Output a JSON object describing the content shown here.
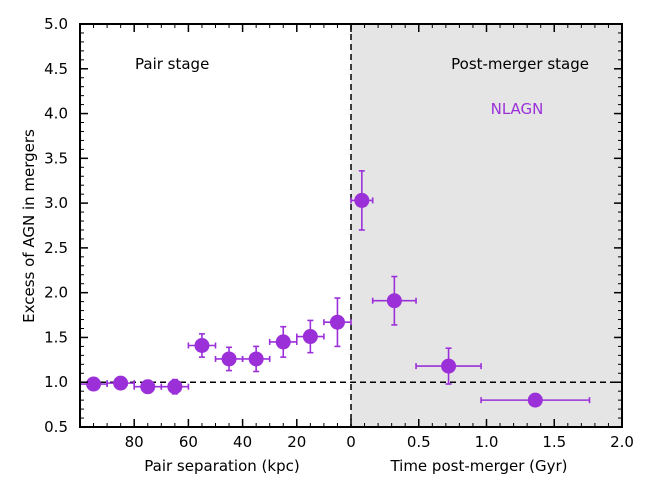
{
  "chart_data": {
    "type": "scatter",
    "ylabel": "Excess of AGN in mergers",
    "ylim": [
      0.5,
      5.0
    ],
    "y_ticks": [
      "0.5",
      "1.0",
      "1.5",
      "2.0",
      "2.5",
      "3.0",
      "3.5",
      "4.0",
      "4.5",
      "5.0"
    ],
    "y_tick_values": [
      0.5,
      1.0,
      1.5,
      2.0,
      2.5,
      3.0,
      3.5,
      4.0,
      4.5,
      5.0
    ],
    "reference_line": 1.0,
    "panels": {
      "pair": {
        "title": "Pair stage",
        "xlabel": "Pair separation (kpc)",
        "xlim": [
          100,
          0
        ],
        "x_ticks": [
          "80",
          "60",
          "40",
          "20",
          "0"
        ],
        "x_tick_values": [
          80,
          60,
          40,
          20,
          0
        ]
      },
      "post": {
        "title": "Post-merger stage",
        "xlabel": "Time post-merger (Gyr)",
        "xlim": [
          0,
          2.0
        ],
        "x_ticks": [
          "0.5",
          "1.0",
          "1.5",
          "2.0"
        ],
        "x_tick_values": [
          0.5,
          1.0,
          1.5,
          2.0
        ]
      }
    },
    "series": [
      {
        "name": "NLAGN",
        "color": "#9b30d9",
        "pair_points": [
          {
            "x": 95,
            "y": 0.98,
            "xerr": 5,
            "yerr": 0.04
          },
          {
            "x": 85,
            "y": 0.99,
            "xerr": 5,
            "yerr": 0.06
          },
          {
            "x": 75,
            "y": 0.95,
            "xerr": 5,
            "yerr": 0.07
          },
          {
            "x": 65,
            "y": 0.95,
            "xerr": 5,
            "yerr": 0.08
          },
          {
            "x": 55,
            "y": 1.41,
            "xerr": 5,
            "yerr": 0.13
          },
          {
            "x": 45,
            "y": 1.26,
            "xerr": 5,
            "yerr": 0.13
          },
          {
            "x": 35,
            "y": 1.26,
            "xerr": 5,
            "yerr": 0.14
          },
          {
            "x": 25,
            "y": 1.45,
            "xerr": 5,
            "yerr": 0.17
          },
          {
            "x": 15,
            "y": 1.51,
            "xerr": 5,
            "yerr": 0.18
          },
          {
            "x": 5,
            "y": 1.67,
            "xerr": 5,
            "yerr": 0.27
          }
        ],
        "post_points": [
          {
            "x": 0.08,
            "y": 3.03,
            "xerr": 0.08,
            "yerr": 0.33
          },
          {
            "x": 0.32,
            "y": 1.91,
            "xerr": 0.16,
            "yerr": 0.27
          },
          {
            "x": 0.72,
            "y": 1.18,
            "xerr": 0.24,
            "yerr": 0.2
          },
          {
            "x": 1.36,
            "y": 0.8,
            "xerr": 0.4,
            "yerr": 0.0
          }
        ]
      }
    ]
  }
}
